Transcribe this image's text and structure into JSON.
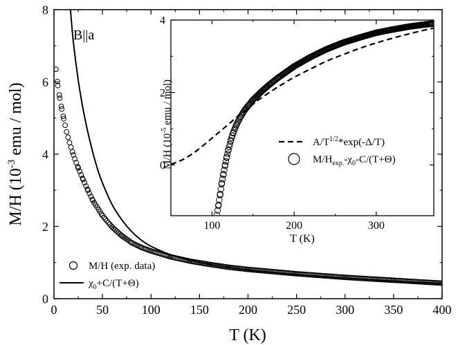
{
  "chart_data": [
    {
      "type": "line",
      "annotation": "B||a",
      "xlabel": "T (K)",
      "ylabel_main": "M/H (10",
      "ylabel_exp": "-3",
      "ylabel_tail": " emu / mol)",
      "xlim": [
        0,
        400
      ],
      "ylim": [
        0,
        8
      ],
      "xticks": [
        "0",
        "50",
        "100",
        "150",
        "200",
        "250",
        "300",
        "350",
        "400"
      ],
      "yticks": [
        "0",
        "2",
        "4",
        "6",
        "8"
      ],
      "legend_position": "bottom-left",
      "series": [
        {
          "name": "M/H (exp. data)",
          "style": "open-circles",
          "x": [
            2,
            4,
            6,
            8,
            10,
            13,
            16,
            20,
            25,
            30,
            35,
            40,
            50,
            60,
            70,
            80,
            90,
            100,
            120,
            140,
            160,
            180,
            200,
            250,
            300,
            350,
            400
          ],
          "y": [
            6.35,
            5.9,
            5.55,
            5.25,
            4.98,
            4.62,
            4.32,
            3.98,
            3.62,
            3.3,
            3.0,
            2.72,
            2.3,
            1.98,
            1.74,
            1.55,
            1.42,
            1.32,
            1.16,
            1.04,
            0.95,
            0.87,
            0.81,
            0.69,
            0.59,
            0.51,
            0.43
          ]
        },
        {
          "name": "χ0+C/(T+Θ)",
          "legend_main": "χ",
          "legend_sub": "0",
          "legend_tail": "+C/(T+Θ)",
          "style": "solid",
          "x": [
            17,
            20,
            25,
            30,
            35,
            40,
            45,
            50,
            60,
            70,
            80,
            90,
            100,
            120,
            150,
            200,
            250,
            300,
            350,
            400
          ],
          "y": [
            8.0,
            7.1,
            6.05,
            5.25,
            4.6,
            4.05,
            3.58,
            3.2,
            2.6,
            2.18,
            1.86,
            1.62,
            1.45,
            1.22,
            1.0,
            0.8,
            0.67,
            0.57,
            0.49,
            0.42
          ]
        }
      ]
    },
    {
      "type": "line",
      "inset": true,
      "xlabel": "T (K)",
      "ylabel_main": "M/H (10",
      "ylabel_exp": "-5",
      "ylabel_tail": " emu / mol)",
      "xlim": [
        50,
        370
      ],
      "ylim": [
        -1.4,
        4
      ],
      "xticks": [
        "100",
        "200",
        "300"
      ],
      "yticks": [
        "0",
        "2",
        "4"
      ],
      "legend_position": "middle-right",
      "series": [
        {
          "name": "A/T1/2*exp(-Δ/T)",
          "legend_main": "A/T",
          "legend_sup": "1/2",
          "legend_tail": "*exp(-Δ/T)",
          "style": "dashed",
          "x": [
            50,
            60,
            70,
            80,
            90,
            100,
            110,
            120,
            130,
            140,
            150,
            160,
            180,
            200,
            220,
            240,
            260,
            280,
            300,
            320,
            340,
            360,
            370
          ],
          "y": [
            0.02,
            0.1,
            0.22,
            0.37,
            0.55,
            0.74,
            0.93,
            1.12,
            1.32,
            1.5,
            1.68,
            1.85,
            2.15,
            2.42,
            2.65,
            2.87,
            3.05,
            3.22,
            3.37,
            3.5,
            3.62,
            3.73,
            3.78
          ]
        },
        {
          "name": "M/Hexp.-χ0-C/(T+Θ)",
          "legend_main": "M/H",
          "legend_sub1": "exp.",
          "legend_mid": "-χ",
          "legend_sub2": "0",
          "legend_tail": "-C/(T+Θ)",
          "style": "open-circles",
          "x": [
            106,
            108,
            110,
            112,
            114,
            116,
            118,
            120,
            123,
            126,
            130,
            135,
            140,
            145,
            150,
            160,
            170,
            180,
            190,
            200,
            220,
            240,
            260,
            280,
            300,
            320,
            340,
            360,
            368
          ],
          "y": [
            -1.38,
            -1.1,
            -0.8,
            -0.5,
            -0.25,
            0.0,
            0.22,
            0.42,
            0.68,
            0.9,
            1.12,
            1.34,
            1.52,
            1.66,
            1.8,
            2.02,
            2.22,
            2.4,
            2.56,
            2.72,
            2.98,
            3.2,
            3.38,
            3.52,
            3.65,
            3.74,
            3.82,
            3.88,
            3.9
          ]
        }
      ]
    }
  ]
}
